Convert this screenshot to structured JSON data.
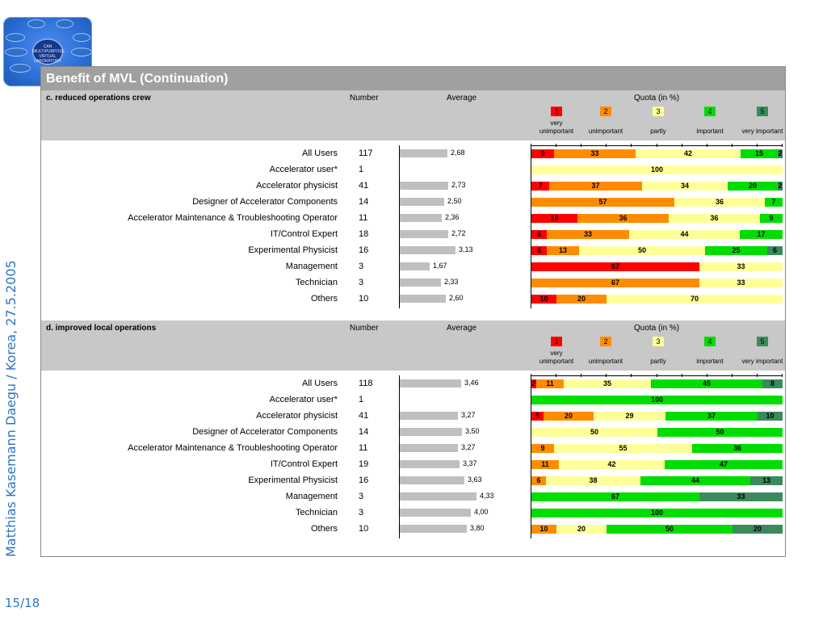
{
  "sidebar_text": "Matthias Kasemann    Daegu / Korea, 27.5.2005",
  "page_number": "15/18",
  "logo": {
    "center_text": "CAN MULTIPURPOSE VIRTUAL LABORATORY"
  },
  "title": "Benefit of MVL (Continuation)",
  "colors": {
    "very_unimportant": "#ff0000",
    "unimportant": "#ff8c00",
    "partly": "#ffff99",
    "important": "#00dd00",
    "very_important": "#3a8a5c",
    "average_bar": "#bfbfbf",
    "header_bg": "#c8c8c8",
    "title_bg": "#a0a0a0"
  },
  "columns": {
    "number": "Number",
    "average": "Average",
    "quota": "Quota (in %)"
  },
  "legend": [
    {
      "num": "1",
      "label": "very\nunimportant"
    },
    {
      "num": "2",
      "label": "unimportant"
    },
    {
      "num": "3",
      "label": "partly"
    },
    {
      "num": "4",
      "label": "important"
    },
    {
      "num": "5",
      "label": "very important"
    }
  ],
  "chart_data": [
    {
      "type": "bar",
      "title": "c. reduced operations crew",
      "rows": [
        {
          "label": "All Users",
          "number": "117",
          "average": 2.68,
          "average_label": "2,68",
          "quota": [
            9,
            33,
            42,
            15,
            2
          ]
        },
        {
          "label": "Accelerator user*",
          "number": "1",
          "average": null,
          "average_label": "",
          "quota": [
            0,
            0,
            100,
            0,
            0
          ]
        },
        {
          "label": "Accelerator physicist",
          "number": "41",
          "average": 2.73,
          "average_label": "2,73",
          "quota": [
            7,
            37,
            34,
            20,
            2
          ]
        },
        {
          "label": "Designer of Accelerator Components",
          "number": "14",
          "average": 2.5,
          "average_label": "2,50",
          "quota": [
            0,
            57,
            36,
            7,
            0
          ]
        },
        {
          "label": "Accelerator Maintenance & Troubleshooting Operator",
          "number": "11",
          "average": 2.36,
          "average_label": "2,36",
          "quota": [
            18,
            36,
            36,
            9,
            0
          ]
        },
        {
          "label": "IT/Control Expert",
          "number": "18",
          "average": 2.72,
          "average_label": "2,72",
          "quota": [
            6,
            33,
            44,
            17,
            0
          ]
        },
        {
          "label": "Experimental Physicist",
          "number": "16",
          "average": 3.13,
          "average_label": "3,13",
          "quota": [
            6,
            13,
            50,
            25,
            6
          ]
        },
        {
          "label": "Management",
          "number": "3",
          "average": 1.67,
          "average_label": "1,67",
          "quota": [
            67,
            0,
            33,
            0,
            0
          ]
        },
        {
          "label": "Technician",
          "number": "3",
          "average": 2.33,
          "average_label": "2,33",
          "quota": [
            0,
            67,
            33,
            0,
            0
          ]
        },
        {
          "label": "Others",
          "number": "10",
          "average": 2.6,
          "average_label": "2,60",
          "quota": [
            10,
            20,
            70,
            0,
            0
          ]
        }
      ]
    },
    {
      "type": "bar",
      "title": "d. improved local operations",
      "rows": [
        {
          "label": "All Users",
          "number": "118",
          "average": 3.46,
          "average_label": "3,46",
          "quota": [
            2,
            11,
            35,
            45,
            8
          ]
        },
        {
          "label": "Accelerator user*",
          "number": "1",
          "average": null,
          "average_label": "",
          "quota": [
            0,
            0,
            0,
            100,
            0
          ]
        },
        {
          "label": "Accelerator physicist",
          "number": "41",
          "average": 3.27,
          "average_label": "3,27",
          "quota": [
            5,
            20,
            29,
            37,
            10
          ]
        },
        {
          "label": "Designer of Accelerator Components",
          "number": "14",
          "average": 3.5,
          "average_label": "3,50",
          "quota": [
            0,
            0,
            50,
            50,
            0
          ]
        },
        {
          "label": "Accelerator Maintenance & Troubleshooting Operator",
          "number": "11",
          "average": 3.27,
          "average_label": "3,27",
          "quota": [
            0,
            9,
            55,
            36,
            0
          ]
        },
        {
          "label": "IT/Control Expert",
          "number": "19",
          "average": 3.37,
          "average_label": "3,37",
          "quota": [
            0,
            11,
            42,
            47,
            0
          ]
        },
        {
          "label": "Experimental Physicist",
          "number": "16",
          "average": 3.63,
          "average_label": "3,63",
          "quota": [
            0,
            6,
            38,
            44,
            13
          ]
        },
        {
          "label": "Management",
          "number": "3",
          "average": 4.33,
          "average_label": "4,33",
          "quota": [
            0,
            0,
            0,
            67,
            33
          ]
        },
        {
          "label": "Technician",
          "number": "3",
          "average": 4.0,
          "average_label": "4,00",
          "quota": [
            0,
            0,
            0,
            100,
            0
          ]
        },
        {
          "label": "Others",
          "number": "10",
          "average": 3.8,
          "average_label": "3,80",
          "quota": [
            0,
            10,
            20,
            50,
            20
          ]
        }
      ]
    }
  ]
}
